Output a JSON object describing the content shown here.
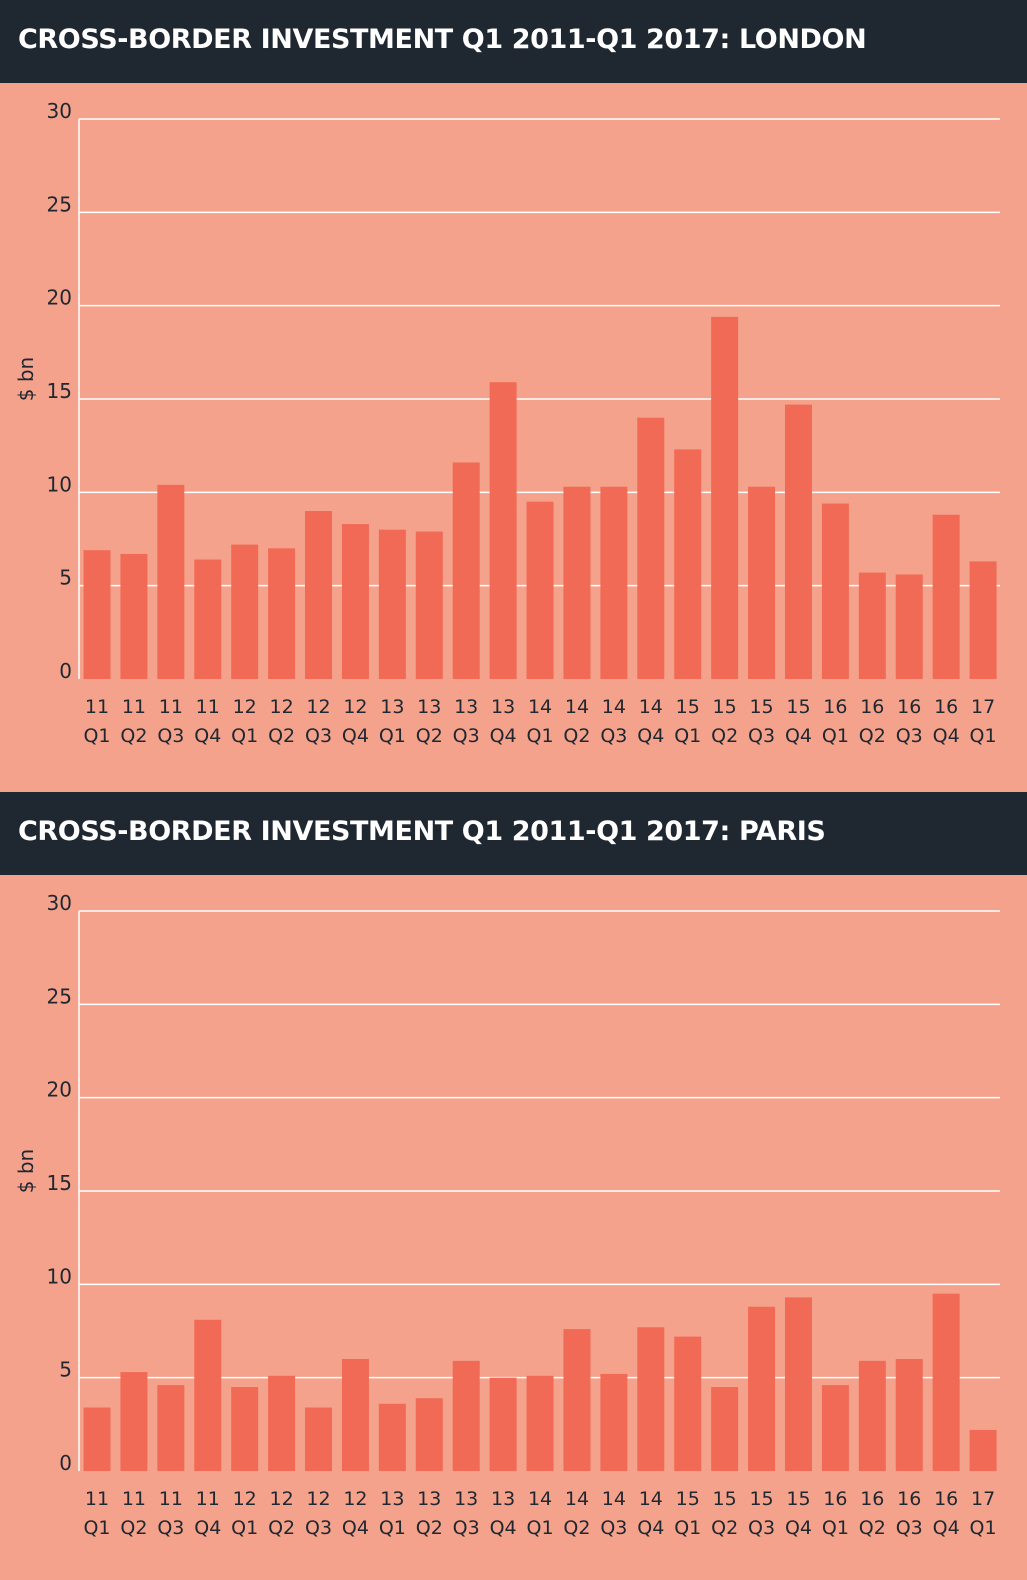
{
  "chart_data": [
    {
      "type": "bar",
      "title": "CROSS-BORDER INVESTMENT Q1 2011-Q1 2017: LONDON",
      "ylabel": "$ bn",
      "ylim": [
        0,
        30
      ],
      "yticks": [
        0,
        5,
        10,
        15,
        20,
        25,
        30
      ],
      "grid": true,
      "categories": [
        [
          "11",
          "Q1"
        ],
        [
          "11",
          "Q2"
        ],
        [
          "11",
          "Q3"
        ],
        [
          "11",
          "Q4"
        ],
        [
          "12",
          "Q1"
        ],
        [
          "12",
          "Q2"
        ],
        [
          "12",
          "Q3"
        ],
        [
          "12",
          "Q4"
        ],
        [
          "13",
          "Q1"
        ],
        [
          "13",
          "Q2"
        ],
        [
          "13",
          "Q3"
        ],
        [
          "13",
          "Q4"
        ],
        [
          "14",
          "Q1"
        ],
        [
          "14",
          "Q2"
        ],
        [
          "14",
          "Q3"
        ],
        [
          "14",
          "Q4"
        ],
        [
          "15",
          "Q1"
        ],
        [
          "15",
          "Q2"
        ],
        [
          "15",
          "Q3"
        ],
        [
          "15",
          "Q4"
        ],
        [
          "16",
          "Q1"
        ],
        [
          "16",
          "Q2"
        ],
        [
          "16",
          "Q3"
        ],
        [
          "16",
          "Q4"
        ],
        [
          "17",
          "Q1"
        ]
      ],
      "values": [
        6.9,
        6.7,
        10.4,
        6.4,
        7.2,
        7.0,
        9.0,
        8.3,
        8.0,
        7.9,
        11.6,
        15.9,
        9.5,
        10.3,
        10.3,
        14.0,
        12.3,
        19.4,
        10.3,
        14.7,
        9.4,
        5.7,
        5.6,
        8.8,
        6.3
      ],
      "bar_color": "#f16a55"
    },
    {
      "type": "bar",
      "title": "CROSS-BORDER INVESTMENT Q1 2011-Q1 2017: PARIS",
      "ylabel": "$ bn",
      "ylim": [
        0,
        30
      ],
      "yticks": [
        0,
        5,
        10,
        15,
        20,
        25,
        30
      ],
      "grid": true,
      "categories": [
        [
          "11",
          "Q1"
        ],
        [
          "11",
          "Q2"
        ],
        [
          "11",
          "Q3"
        ],
        [
          "11",
          "Q4"
        ],
        [
          "12",
          "Q1"
        ],
        [
          "12",
          "Q2"
        ],
        [
          "12",
          "Q3"
        ],
        [
          "12",
          "Q4"
        ],
        [
          "13",
          "Q1"
        ],
        [
          "13",
          "Q2"
        ],
        [
          "13",
          "Q3"
        ],
        [
          "13",
          "Q4"
        ],
        [
          "14",
          "Q1"
        ],
        [
          "14",
          "Q2"
        ],
        [
          "14",
          "Q3"
        ],
        [
          "14",
          "Q4"
        ],
        [
          "15",
          "Q1"
        ],
        [
          "15",
          "Q2"
        ],
        [
          "15",
          "Q3"
        ],
        [
          "15",
          "Q4"
        ],
        [
          "16",
          "Q1"
        ],
        [
          "16",
          "Q2"
        ],
        [
          "16",
          "Q3"
        ],
        [
          "16",
          "Q4"
        ],
        [
          "17",
          "Q1"
        ]
      ],
      "values": [
        3.4,
        5.3,
        4.6,
        8.1,
        4.5,
        5.1,
        3.4,
        6.0,
        3.6,
        3.9,
        5.9,
        5.0,
        5.1,
        7.6,
        5.2,
        7.7,
        7.2,
        4.5,
        8.8,
        9.3,
        4.6,
        5.9,
        6.0,
        9.5,
        2.2
      ],
      "bar_color": "#f16a55"
    }
  ],
  "colors": {
    "background": "#f4a28b",
    "title_bar": "#1f2731",
    "title_text": "#ffffff",
    "bar": "#f16a55",
    "gridline": "#ffffff",
    "axis_text": "#1f2731"
  }
}
